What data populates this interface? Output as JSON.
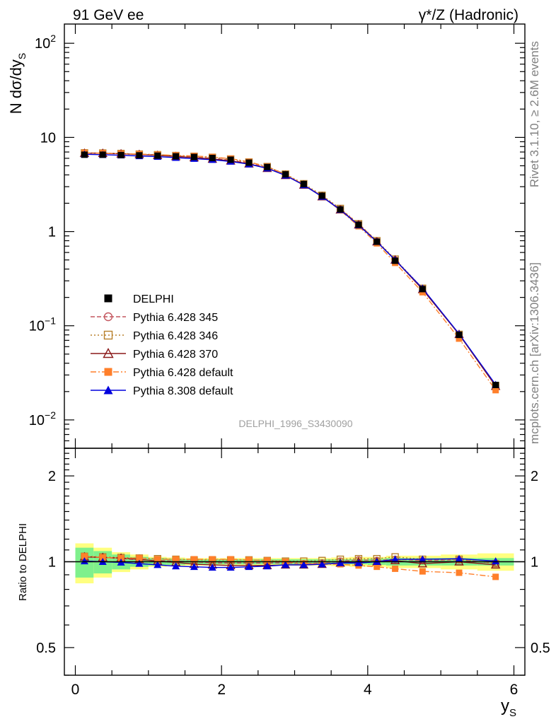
{
  "header": {
    "left": "91 GeV ee",
    "right": "γ*/Z (Hadronic)"
  },
  "side_labels": {
    "rivet": "Rivet 3.1.10, ≥ 2.6M events",
    "mcplots": "mcplots.cern.ch [arXiv:1306.3436]"
  },
  "analysis_label": "DELPHI_1996_S3430090",
  "axes": {
    "top_ylabel": "N dσ/dy_S",
    "bottom_ylabel": "Ratio to DELPHI",
    "xlabel": "y_S",
    "top_yticks": [
      {
        "value": 100,
        "base": "10",
        "exp": "2"
      },
      {
        "value": 10,
        "base": "10",
        "exp": ""
      },
      {
        "value": 1,
        "base": "1",
        "exp": ""
      },
      {
        "value": 0.1,
        "base": "10",
        "exp": "−1"
      },
      {
        "value": 0.01,
        "base": "10",
        "exp": "−2"
      }
    ],
    "bottom_yticks": [
      "2",
      "1",
      "0.5"
    ],
    "xticks": [
      "0",
      "2",
      "4",
      "6"
    ]
  },
  "legend": [
    {
      "label": "DELPHI",
      "color": "#000000",
      "marker": "filled-square",
      "line": "none"
    },
    {
      "label": "Pythia 6.428 345",
      "color": "#c4575f",
      "marker": "open-circle",
      "line": "dashed"
    },
    {
      "label": "Pythia 6.428 346",
      "color": "#b8802c",
      "marker": "open-square",
      "line": "dotted"
    },
    {
      "label": "Pythia 6.428 370",
      "color": "#8b1a1a",
      "marker": "open-triangle",
      "line": "solid"
    },
    {
      "label": "Pythia 6.428 default",
      "color": "#ff7f2a",
      "marker": "filled-square",
      "line": "dashdot"
    },
    {
      "label": "Pythia 8.308 default",
      "color": "#0000dd",
      "marker": "filled-triangle",
      "line": "solid"
    }
  ],
  "chart_data": [
    {
      "type": "line",
      "panel": "main",
      "title": "91 GeV ee",
      "xlabel": "y_S",
      "ylabel": "N dσ/dy_S",
      "yscale": "log",
      "xlim": [
        -0.15,
        6.15
      ],
      "ylim": [
        0.005,
        160
      ],
      "x": [
        0.125,
        0.375,
        0.625,
        0.875,
        1.125,
        1.375,
        1.625,
        1.875,
        2.125,
        2.375,
        2.625,
        2.875,
        3.125,
        3.375,
        3.625,
        3.875,
        4.125,
        4.375,
        4.75,
        5.25,
        5.75
      ],
      "series": [
        {
          "name": "DELPHI",
          "values": [
            6.55,
            6.55,
            6.5,
            6.45,
            6.4,
            6.3,
            6.2,
            6.05,
            5.8,
            5.4,
            4.85,
            4.05,
            3.2,
            2.4,
            1.72,
            1.18,
            0.78,
            0.49,
            0.245,
            0.08,
            0.0235
          ]
        },
        {
          "name": "Pythia 6.428 345",
          "values": [
            6.85,
            6.8,
            6.72,
            6.6,
            6.5,
            6.35,
            6.2,
            6.0,
            5.75,
            5.35,
            4.8,
            4.0,
            3.15,
            2.38,
            1.73,
            1.2,
            0.79,
            0.5,
            0.248,
            0.081,
            0.0232
          ]
        },
        {
          "name": "Pythia 6.428 346",
          "values": [
            6.85,
            6.82,
            6.75,
            6.65,
            6.55,
            6.42,
            6.3,
            6.15,
            5.9,
            5.48,
            4.9,
            4.08,
            3.22,
            2.43,
            1.76,
            1.21,
            0.8,
            0.51,
            0.25,
            0.081,
            0.0232
          ]
        },
        {
          "name": "Pythia 6.428 370",
          "values": [
            6.8,
            6.78,
            6.7,
            6.6,
            6.45,
            6.28,
            6.1,
            5.9,
            5.65,
            5.25,
            4.7,
            3.95,
            3.12,
            2.35,
            1.7,
            1.18,
            0.78,
            0.5,
            0.243,
            0.081,
            0.0228
          ]
        },
        {
          "name": "Pythia 6.428 default",
          "values": [
            6.85,
            6.8,
            6.72,
            6.65,
            6.55,
            6.45,
            6.35,
            6.2,
            5.95,
            5.5,
            4.9,
            4.05,
            3.15,
            2.35,
            1.68,
            1.14,
            0.75,
            0.465,
            0.227,
            0.073,
            0.0207
          ]
        },
        {
          "name": "Pythia 8.308 default",
          "values": [
            6.62,
            6.55,
            6.47,
            6.35,
            6.25,
            6.1,
            5.95,
            5.8,
            5.55,
            5.2,
            4.7,
            3.95,
            3.12,
            2.35,
            1.7,
            1.17,
            0.78,
            0.5,
            0.25,
            0.082,
            0.0237
          ]
        }
      ]
    },
    {
      "type": "line",
      "panel": "ratio",
      "ylabel": "Ratio to DELPHI",
      "xlabel": "y_S",
      "yscale": "log",
      "xlim": [
        -0.15,
        6.15
      ],
      "ylim": [
        0.4,
        2.5
      ],
      "x": [
        0.125,
        0.375,
        0.625,
        0.875,
        1.125,
        1.375,
        1.625,
        1.875,
        2.125,
        2.375,
        2.625,
        2.875,
        3.125,
        3.375,
        3.625,
        3.875,
        4.125,
        4.375,
        4.75,
        5.25,
        5.75
      ],
      "uncertainty_bands": {
        "edges": [
          0,
          0.25,
          0.5,
          0.75,
          1.0,
          1.25,
          1.5,
          1.75,
          2.0,
          2.25,
          2.5,
          2.75,
          3.0,
          3.25,
          3.5,
          3.75,
          4.0,
          4.25,
          4.5,
          5.0,
          5.5,
          6.0
        ],
        "inner": [
          0.12,
          0.09,
          0.06,
          0.04,
          0.03,
          0.025,
          0.02,
          0.02,
          0.02,
          0.02,
          0.02,
          0.02,
          0.02,
          0.02,
          0.02,
          0.02,
          0.025,
          0.03,
          0.03,
          0.03,
          0.03
        ],
        "outer": [
          0.16,
          0.12,
          0.08,
          0.06,
          0.04,
          0.035,
          0.03,
          0.03,
          0.03,
          0.03,
          0.03,
          0.03,
          0.03,
          0.03,
          0.035,
          0.04,
          0.04,
          0.05,
          0.05,
          0.06,
          0.07
        ],
        "inner_color": "#7ff08c",
        "outer_color": "#ffff80"
      },
      "series": [
        {
          "name": "DELPHI",
          "values": [
            1,
            1,
            1,
            1,
            1,
            1,
            1,
            1,
            1,
            1,
            1,
            1,
            1,
            1,
            1,
            1,
            1,
            1,
            1,
            1,
            1
          ]
        },
        {
          "name": "Pythia 6.428 345",
          "values": [
            1.045,
            1.035,
            1.025,
            1.015,
            1.01,
            1.005,
            1.0,
            0.99,
            0.99,
            0.99,
            0.99,
            0.99,
            0.985,
            0.99,
            1.005,
            1.015,
            1.01,
            1.02,
            1.01,
            1.015,
            0.99
          ]
        },
        {
          "name": "Pythia 6.428 346",
          "values": [
            1.045,
            1.04,
            1.035,
            1.03,
            1.025,
            1.02,
            1.015,
            1.015,
            1.015,
            1.015,
            1.01,
            1.005,
            1.005,
            1.01,
            1.02,
            1.025,
            1.025,
            1.04,
            1.02,
            1.02,
            0.985
          ]
        },
        {
          "name": "Pythia 6.428 370",
          "values": [
            1.04,
            1.035,
            1.03,
            1.02,
            1.005,
            0.995,
            0.98,
            0.975,
            0.97,
            0.97,
            0.97,
            0.975,
            0.975,
            0.98,
            0.99,
            1.0,
            1.0,
            1.01,
            0.985,
            1.0,
            0.975
          ]
        },
        {
          "name": "Pythia 6.428 default",
          "values": [
            1.045,
            1.035,
            1.03,
            1.03,
            1.02,
            1.02,
            1.02,
            1.02,
            1.02,
            1.015,
            1.01,
            1.0,
            0.985,
            0.98,
            0.98,
            0.97,
            0.96,
            0.945,
            0.925,
            0.915,
            0.885
          ]
        },
        {
          "name": "Pythia 8.308 default",
          "values": [
            1.005,
            1.0,
            0.995,
            0.985,
            0.975,
            0.965,
            0.96,
            0.955,
            0.955,
            0.96,
            0.965,
            0.975,
            0.975,
            0.98,
            0.99,
            0.99,
            1.0,
            1.02,
            1.02,
            1.025,
            1.005
          ]
        }
      ]
    }
  ]
}
